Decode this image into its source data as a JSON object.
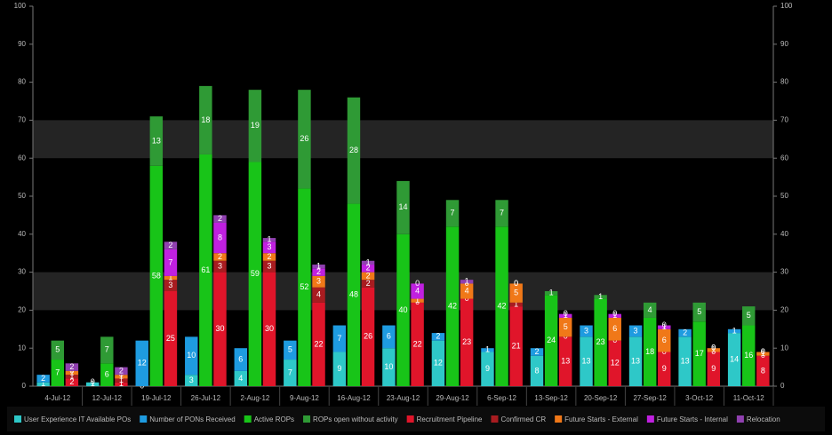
{
  "chart_data": {
    "type": "bar",
    "categories": [
      "4-Jul-12",
      "12-Jul-12",
      "19-Jul-12",
      "26-Jul-12",
      "2-Aug-12",
      "9-Aug-12",
      "16-Aug-12",
      "23-Aug-12",
      "29-Aug-12",
      "6-Sep-12",
      "13-Sep-12",
      "20-Sep-12",
      "27-Sep-12",
      "3-Oct-12",
      "11-Oct-12"
    ],
    "series": [
      {
        "name": "User Experience IT Available POs",
        "color": "#2ec8c8",
        "stack": 0,
        "values": [
          1,
          1,
          0,
          3,
          4,
          7,
          9,
          10,
          12,
          9,
          8,
          13,
          13,
          13,
          14
        ]
      },
      {
        "name": "Number of PONs Received",
        "color": "#1e9be0",
        "stack": 0,
        "values": [
          2,
          0,
          12,
          10,
          6,
          5,
          7,
          6,
          2,
          1,
          2,
          3,
          3,
          2,
          1
        ]
      },
      {
        "name": "Active ROPs",
        "color": "#18c418",
        "stack": 1,
        "values": [
          7,
          6,
          58,
          61,
          59,
          52,
          48,
          40,
          42,
          42,
          24,
          23,
          18,
          17,
          16
        ]
      },
      {
        "name": "ROPs open without activity",
        "color": "#2f9a35",
        "stack": 1,
        "values": [
          5,
          7,
          13,
          18,
          19,
          26,
          28,
          14,
          7,
          7,
          1,
          1,
          4,
          5,
          5
        ]
      },
      {
        "name": "Recruitment Pipeline",
        "color": "#e0152a",
        "stack": 2,
        "values": [
          2,
          1,
          25,
          30,
          30,
          22,
          26,
          22,
          23,
          21,
          13,
          12,
          9,
          9,
          8
        ]
      },
      {
        "name": "Confirmed CR",
        "color": "#a81c20",
        "stack": 2,
        "values": [
          1,
          1,
          3,
          3,
          3,
          4,
          2,
          0,
          0,
          1,
          0,
          0,
          0,
          0,
          0
        ]
      },
      {
        "name": "Future Starts - External",
        "color": "#f07818",
        "stack": 2,
        "values": [
          1,
          1,
          1,
          2,
          2,
          3,
          2,
          1,
          4,
          5,
          5,
          6,
          6,
          1,
          1
        ]
      },
      {
        "name": "Future Starts - Internal",
        "color": "#c020e0",
        "stack": 2,
        "values": [
          0,
          0,
          7,
          8,
          3,
          2,
          2,
          4,
          0,
          0,
          1,
          1,
          1,
          0,
          0
        ]
      },
      {
        "name": "Relocation",
        "color": "#9040b0",
        "stack": 2,
        "values": [
          2,
          2,
          2,
          2,
          1,
          1,
          1,
          0,
          1,
          0,
          0,
          0,
          0,
          0,
          0
        ]
      }
    ],
    "ylim": [
      0,
      100
    ],
    "yticks": [
      0,
      10,
      20,
      30,
      40,
      50,
      60,
      70,
      80,
      90,
      100
    ],
    "grid": true
  }
}
